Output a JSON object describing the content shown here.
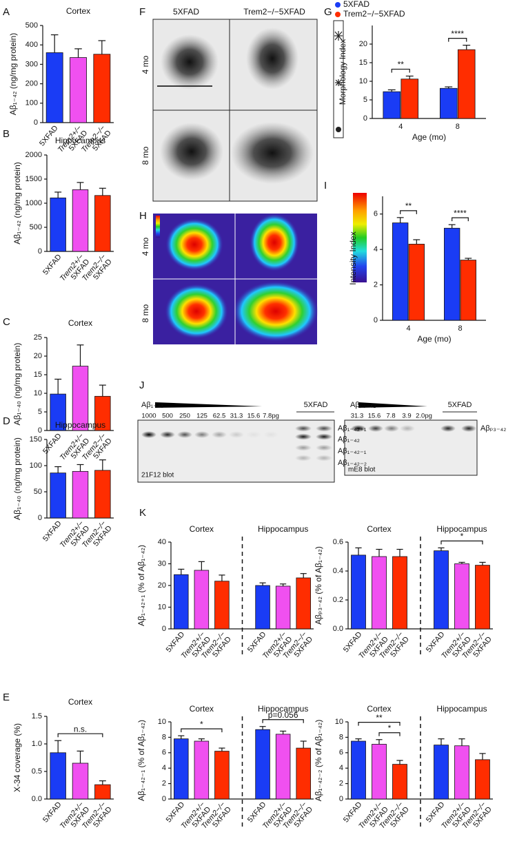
{
  "panel_labels": [
    "A",
    "B",
    "C",
    "D",
    "E",
    "F",
    "G",
    "H",
    "I",
    "J",
    "K"
  ],
  "images": {
    "F": {
      "columns": [
        "5XFAD",
        "Trem2−/−5XFAD"
      ],
      "rows": [
        "4 mo",
        "8 mo"
      ]
    },
    "H": {
      "rows": [
        "4 mo",
        "8 mo"
      ]
    },
    "J": {
      "left": {
        "title": "Aβ₁₋₄₂",
        "amounts": [
          "1000",
          "500",
          "250",
          "125",
          "62.5",
          "31.3",
          "15.6",
          "7.8pg"
        ],
        "sample": "5XFAD",
        "bands": [
          "Aβ₁₋₄₂₊₁",
          "Aβ₁₋₄₂",
          "Aβ₁₋₄₂₋₁",
          "Aβ₁₋₄₂₋₂"
        ],
        "blot": "21F12 blot"
      },
      "right": {
        "title": "Aβₚ₃₋₄₂",
        "amounts": [
          "31.3",
          "15.6",
          "7.8",
          "3.9",
          "2.0pg"
        ],
        "sample": "5XFAD",
        "bands": [
          "Aβₚ₃₋₄₂"
        ],
        "blot": "mE8 blot"
      }
    }
  },
  "chart_data": [
    {
      "type": "bar",
      "title": "Cortex",
      "ylabel": "Aβ₁₋₄₂ (ng/mg protein)",
      "categories": [
        [
          "5XFAD"
        ],
        [
          "Trem2+/−",
          "5XFAD"
        ],
        [
          "Trem2−/−",
          "5XFAD"
        ]
      ],
      "values": [
        360,
        335,
        352
      ],
      "errors": [
        92,
        45,
        70
      ],
      "colors": [
        "#1a3cf5",
        "#f050f0",
        "#ff2d00"
      ],
      "ylim": [
        0,
        500
      ],
      "yticks": [
        0,
        100,
        200,
        300,
        400,
        500
      ]
    },
    {
      "type": "bar",
      "title": "Hippocampus",
      "ylabel": "Aβ₁₋₄₂ (ng/mg protein)",
      "categories": [
        [
          "5XFAD"
        ],
        [
          "Trem2+/−",
          "5XFAD"
        ],
        [
          "Trem2−/−",
          "5XFAD"
        ]
      ],
      "values": [
        1110,
        1280,
        1160
      ],
      "errors": [
        120,
        150,
        150
      ],
      "colors": [
        "#1a3cf5",
        "#f050f0",
        "#ff2d00"
      ],
      "ylim": [
        0,
        2000
      ],
      "yticks": [
        0,
        500,
        1000,
        1500,
        2000
      ]
    },
    {
      "type": "bar",
      "title": "Cortex",
      "ylabel": "Aβ₁₋₄₀ (ng/mg protein)",
      "categories": [
        [
          "5XFAD"
        ],
        [
          "Trem2+/−",
          "5XFAD"
        ],
        [
          "Trem2−/−",
          "5XFAD"
        ]
      ],
      "values": [
        9.8,
        17.3,
        9.2
      ],
      "errors": [
        4,
        5.7,
        3
      ],
      "colors": [
        "#1a3cf5",
        "#f050f0",
        "#ff2d00"
      ],
      "ylim": [
        0,
        25
      ],
      "yticks": [
        0,
        5,
        10,
        15,
        20,
        25
      ]
    },
    {
      "type": "bar",
      "title": "Hippocampus",
      "ylabel": "Aβ₁₋₄₀ (ng/mg protein)",
      "categories": [
        [
          "5XFAD"
        ],
        [
          "Trem2+/−",
          "5XFAD"
        ],
        [
          "Trem2−/−",
          "5XFAD"
        ]
      ],
      "values": [
        86,
        89,
        91
      ],
      "errors": [
        12,
        13,
        20
      ],
      "colors": [
        "#1a3cf5",
        "#f050f0",
        "#ff2d00"
      ],
      "ylim": [
        0,
        150
      ],
      "yticks": [
        0,
        50,
        100,
        150
      ]
    },
    {
      "type": "bar",
      "title": "Cortex",
      "ylabel": "X-34 coverage (%)",
      "categories": [
        [
          "5XFAD"
        ],
        [
          "Trem2+/−",
          "5XFAD"
        ],
        [
          "Trem2−/−",
          "5XFAD"
        ]
      ],
      "values": [
        0.84,
        0.65,
        0.26
      ],
      "errors": [
        0.22,
        0.22,
        0.07
      ],
      "colors": [
        "#1a3cf5",
        "#f050f0",
        "#ff2d00"
      ],
      "ylim": [
        0,
        1.5
      ],
      "yticks": [
        {
          "value": 0,
          "label": "0.0"
        },
        0.5,
        {
          "value": 1,
          "label": "1.0"
        },
        1.5
      ],
      "annotations": [
        {
          "text": "n.s.",
          "from": 0,
          "to": 2
        }
      ]
    },
    {
      "type": "grouped-bar",
      "ylabel": "Morphology Index",
      "xlabel": "Age (mo)",
      "categories": [
        4,
        8
      ],
      "series": [
        {
          "name": "5XFAD",
          "color": "#1a3cf5",
          "values": [
            7.2,
            8.1
          ],
          "errors": [
            0.5,
            0.4
          ]
        },
        {
          "name": "Trem2−/−5XFAD",
          "color": "#ff2d00",
          "values": [
            10.6,
            18.5
          ],
          "errors": [
            0.8,
            1.2
          ]
        }
      ],
      "ylim": [
        0,
        25
      ],
      "yticks": [
        0,
        5,
        10,
        15,
        20
      ],
      "legend": "top",
      "annotations": [
        {
          "text": "**",
          "category": 0
        },
        {
          "text": "****",
          "category": 1
        }
      ]
    },
    {
      "type": "grouped-bar",
      "ylabel": "Intensity Index",
      "xlabel": "Age (mo)",
      "categories": [
        4,
        8
      ],
      "series": [
        {
          "name": "5XFAD",
          "color": "#1a3cf5",
          "values": [
            5.5,
            5.2
          ],
          "errors": [
            0.3,
            0.2
          ]
        },
        {
          "name": "Trem2−/−5XFAD",
          "color": "#ff2d00",
          "values": [
            4.3,
            3.4
          ],
          "errors": [
            0.25,
            0.1
          ]
        }
      ],
      "ylim": [
        0,
        7
      ],
      "yticks": [
        0,
        2,
        4,
        6
      ],
      "annotations": [
        {
          "text": "**",
          "category": 0
        },
        {
          "text": "****",
          "category": 1
        }
      ]
    },
    {
      "type": "bar",
      "groups": [
        "Cortex",
        "Hippocampus"
      ],
      "ylabel": "Aβ₁₋₄₂₊₁ (% of Aβ₁₋₄₂)",
      "categories": [
        [
          "5XFAD"
        ],
        [
          "Trem2+/−",
          "5XFAD"
        ],
        [
          "Trem2−/−",
          "5XFAD"
        ],
        [
          "5XFAD"
        ],
        [
          "Trem2+/−",
          "5XFAD"
        ],
        [
          "Trem2−/−",
          "5XFAD"
        ]
      ],
      "values": [
        25,
        27,
        22,
        20,
        19.7,
        23.5
      ],
      "errors": [
        2.5,
        4,
        2.8,
        1.2,
        1,
        2
      ],
      "colors": [
        "#1a3cf5",
        "#f050f0",
        "#ff2d00",
        "#1a3cf5",
        "#f050f0",
        "#ff2d00"
      ],
      "ylim": [
        0,
        40
      ],
      "yticks": [
        0,
        10,
        20,
        30,
        40
      ]
    },
    {
      "type": "bar",
      "groups": [
        "Cortex",
        "Hippocampus"
      ],
      "ylabel": "Aβₚ₃₋₄₂ (% of Aβ₁₋₄₂)",
      "categories": [
        [
          "5XFAD"
        ],
        [
          "Trem2+/−",
          "5XFAD"
        ],
        [
          "Trem2−/−",
          "5XFAD"
        ],
        [
          "5XFAD"
        ],
        [
          "Trem2+/−",
          "5XFAD"
        ],
        [
          "Trem2−/−",
          "5XFAD"
        ]
      ],
      "values": [
        0.51,
        0.5,
        0.5,
        0.54,
        0.45,
        0.44
      ],
      "errors": [
        0.05,
        0.05,
        0.05,
        0.02,
        0.01,
        0.02
      ],
      "colors": [
        "#1a3cf5",
        "#f050f0",
        "#ff2d00",
        "#1a3cf5",
        "#f050f0",
        "#ff2d00"
      ],
      "ylim": [
        0,
        0.6
      ],
      "yticks": [
        {
          "value": 0,
          "label": "0.0"
        },
        0.2,
        0.4,
        0.6
      ],
      "annotations": [
        {
          "text": "*",
          "from": 3,
          "to": 5
        }
      ]
    },
    {
      "type": "bar",
      "groups": [
        "Cortex",
        "Hippocampus"
      ],
      "ylabel": "Aβ₁₋₄₂₋₁ (% of Aβ₁₋₄₂)",
      "categories": [
        [
          "5XFAD"
        ],
        [
          "Trem2+/−",
          "5XFAD"
        ],
        [
          "Trem2−/−",
          "5XFAD"
        ],
        [
          "5XFAD"
        ],
        [
          "Trem2+/−",
          "5XFAD"
        ],
        [
          "Trem2−/−",
          "5XFAD"
        ]
      ],
      "values": [
        7.8,
        7.5,
        6.2,
        9,
        8.4,
        6.6
      ],
      "errors": [
        0.4,
        0.3,
        0.4,
        0.4,
        0.4,
        0.9
      ],
      "colors": [
        "#1a3cf5",
        "#f050f0",
        "#ff2d00",
        "#1a3cf5",
        "#f050f0",
        "#ff2d00"
      ],
      "ylim": [
        0,
        10
      ],
      "yticks": [
        0,
        2,
        4,
        6,
        8,
        10
      ],
      "annotations": [
        {
          "text": "*",
          "from": 0,
          "to": 2
        },
        {
          "text": "p=0.056",
          "from": 3,
          "to": 5
        }
      ]
    },
    {
      "type": "bar",
      "groups": [
        "Cortex",
        "Hippocampus"
      ],
      "ylabel": "Aβ₁₋₄₂₋₂ (% of Aβ₁₋₄₂)",
      "categories": [
        [
          "5XFAD"
        ],
        [
          "Trem2+/−",
          "5XFAD"
        ],
        [
          "Trem2−/−",
          "5XFAD"
        ],
        [
          "5XFAD"
        ],
        [
          "Trem2+/−",
          "5XFAD"
        ],
        [
          "Trem2−/−",
          "5XFAD"
        ]
      ],
      "values": [
        7.5,
        7.1,
        4.5,
        7,
        6.9,
        5.1
      ],
      "errors": [
        0.3,
        0.6,
        0.5,
        0.8,
        0.9,
        0.8
      ],
      "colors": [
        "#1a3cf5",
        "#f050f0",
        "#ff2d00",
        "#1a3cf5",
        "#f050f0",
        "#ff2d00"
      ],
      "ylim": [
        0,
        10
      ],
      "yticks": [
        0,
        2,
        4,
        6,
        8,
        10
      ],
      "annotations": [
        {
          "text": "*",
          "from": 1,
          "to": 2
        },
        {
          "text": "**",
          "from": 0,
          "to": 2
        }
      ]
    }
  ]
}
